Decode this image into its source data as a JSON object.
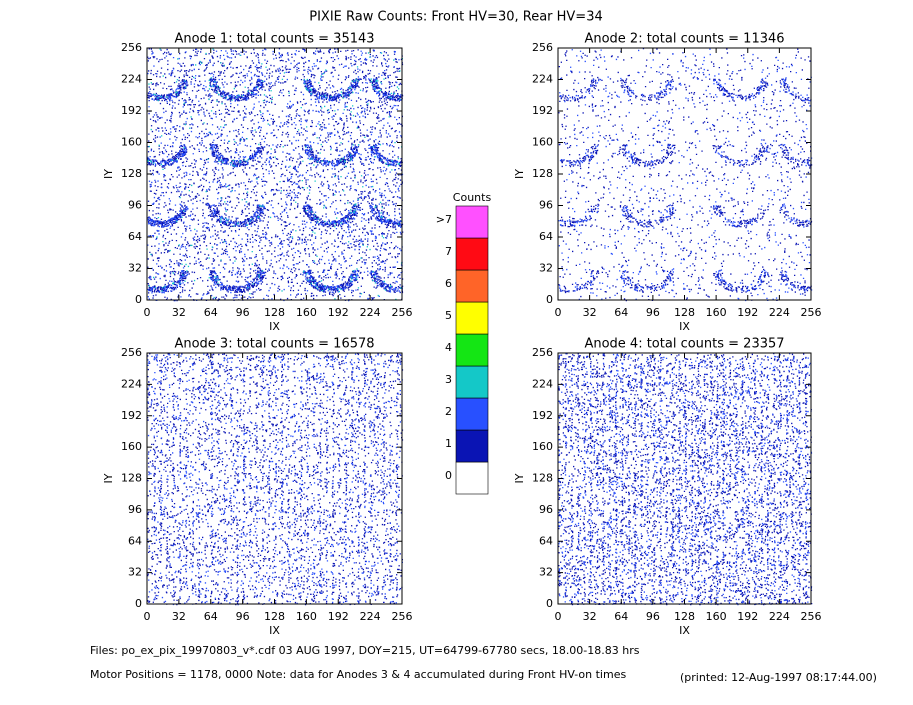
{
  "title": "PIXIE Raw Counts:  Front HV=30, Rear HV=34",
  "chart_data": [
    {
      "type": "heatmap",
      "title": "Anode 1: total counts = 35143",
      "xlabel": "IX",
      "ylabel": "IY",
      "xlim": [
        0,
        256
      ],
      "ylim": [
        0,
        256
      ],
      "xticks": [
        0,
        32,
        64,
        96,
        128,
        160,
        192,
        224,
        256
      ],
      "yticks": [
        0,
        32,
        64,
        96,
        128,
        160,
        192,
        224,
        256
      ]
    },
    {
      "type": "heatmap",
      "title": "Anode 2: total counts = 11346",
      "xlabel": "IX",
      "ylabel": "IY",
      "xlim": [
        0,
        256
      ],
      "ylim": [
        0,
        256
      ],
      "xticks": [
        0,
        32,
        64,
        96,
        128,
        160,
        192,
        224,
        256
      ],
      "yticks": [
        0,
        32,
        64,
        96,
        128,
        160,
        192,
        224,
        256
      ]
    },
    {
      "type": "heatmap",
      "title": "Anode 3: total counts = 16578",
      "xlabel": "IX",
      "ylabel": "IY",
      "xlim": [
        0,
        256
      ],
      "ylim": [
        0,
        256
      ],
      "xticks": [
        0,
        32,
        64,
        96,
        128,
        160,
        192,
        224,
        256
      ],
      "yticks": [
        0,
        32,
        64,
        96,
        128,
        160,
        192,
        224,
        256
      ]
    },
    {
      "type": "heatmap",
      "title": "Anode 4: total counts = 23357",
      "xlabel": "IX",
      "ylabel": "IY",
      "xlim": [
        0,
        256
      ],
      "ylim": [
        0,
        256
      ],
      "xticks": [
        0,
        32,
        64,
        96,
        128,
        160,
        192,
        224,
        256
      ],
      "yticks": [
        0,
        32,
        64,
        96,
        128,
        160,
        192,
        224,
        256
      ]
    }
  ],
  "colorbar": {
    "title": "Counts",
    "ticks": [
      0,
      1,
      2,
      3,
      4,
      5,
      6,
      7,
      {
        "value": 8,
        "label": ">7"
      }
    ],
    "colors": [
      "#ffffff",
      "#0a14b4",
      "#2850ff",
      "#14c8c8",
      "#14e614",
      "#ffff00",
      "#ff6428",
      "#ff0a14",
      "#ff50ff"
    ]
  },
  "footer": {
    "files": "Files: po_ex_pix_19970803_v*.cdf    03 AUG 1997, DOY=215, UT=64799-67780 secs, 18.00-18.83 hrs",
    "motor": "Motor Positions = 1178, 0000    Note: data for Anodes 3 & 4 accumulated during Front HV-on times",
    "printed": "(printed: 12-Aug-1997 08:17:44.00)"
  }
}
